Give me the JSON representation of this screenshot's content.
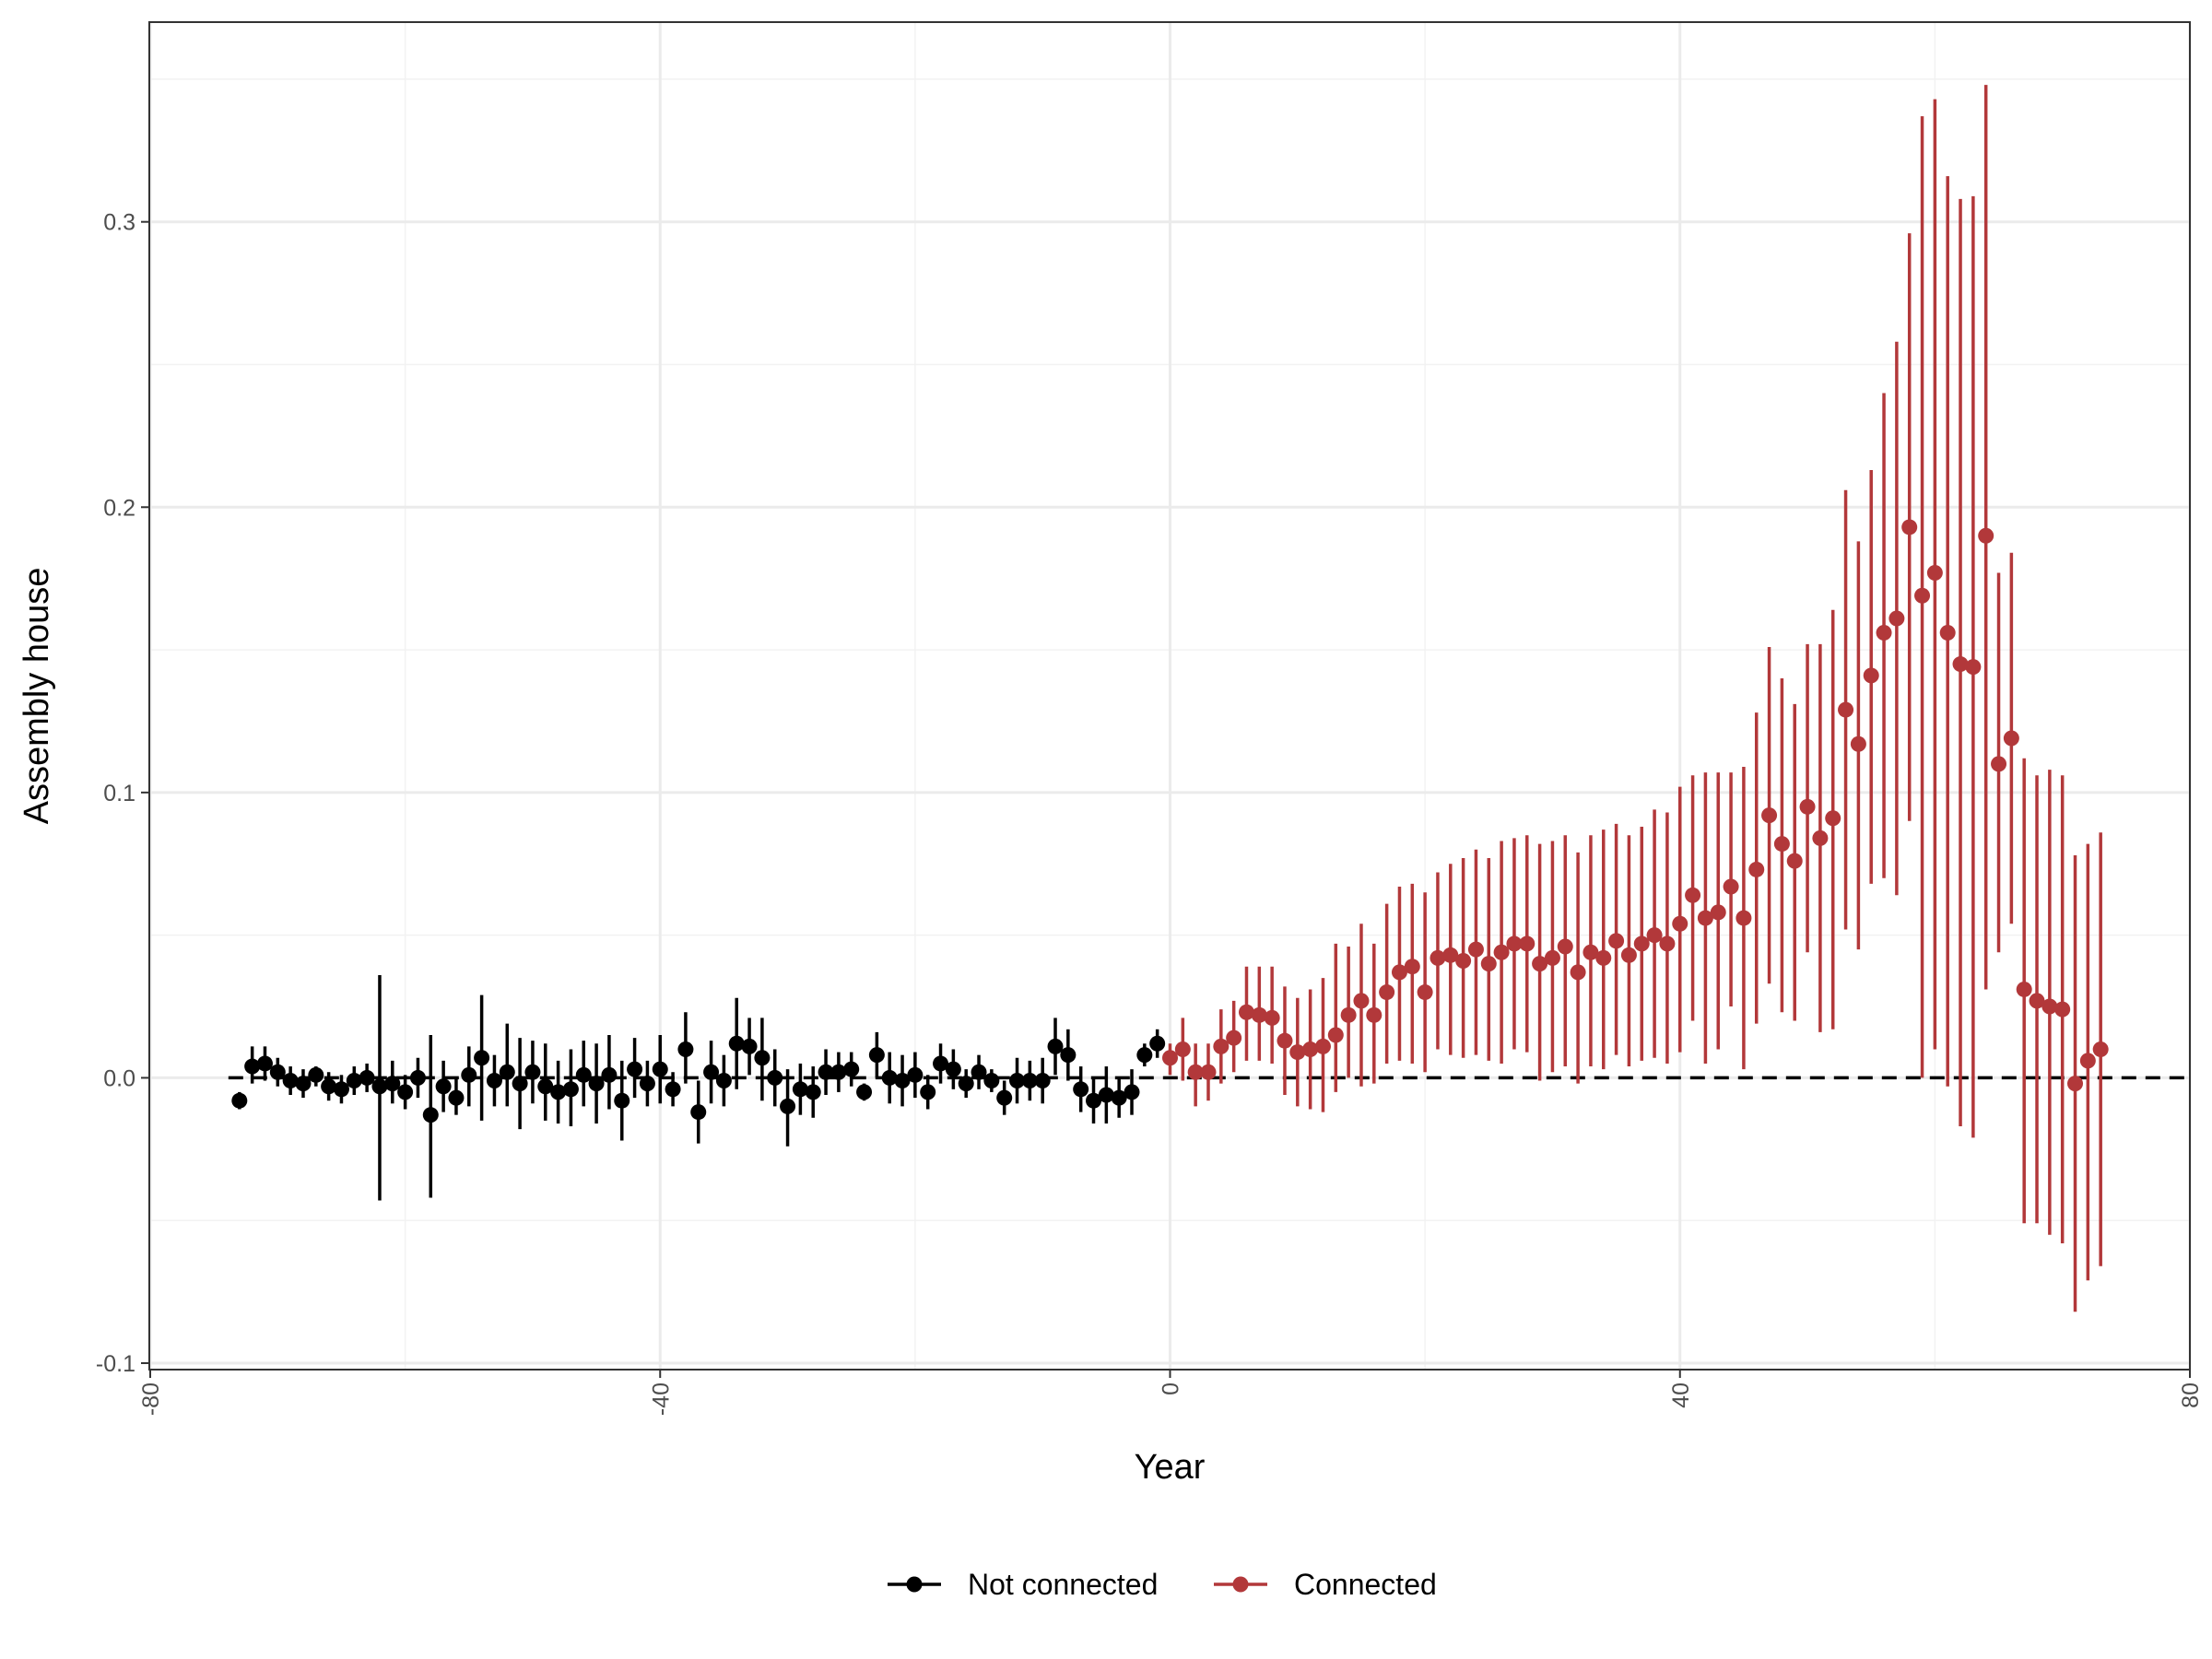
{
  "chart_data": {
    "type": "scatter",
    "title": "",
    "xlabel": "Year",
    "ylabel": "Assembly house",
    "xlim": [
      -80,
      80
    ],
    "ylim": [
      -0.1,
      0.37
    ],
    "x_ticks": [
      -80,
      -40,
      0,
      40,
      80
    ],
    "x_tick_labels": [
      "-80",
      "-40",
      "0",
      "40",
      "80"
    ],
    "y_ticks": [
      -0.1,
      0.0,
      0.1,
      0.2,
      0.3
    ],
    "y_tick_labels": [
      "-0.1",
      "0.0",
      "0.1",
      "0.2",
      "0.3"
    ],
    "reference_line": {
      "y": 0,
      "style": "dashed"
    },
    "grid": true,
    "legend_position": "bottom",
    "series": [
      {
        "name": "Not connected",
        "color": "#000000",
        "x": [
          -73,
          -72,
          -71,
          -70,
          -69,
          -68,
          -67,
          -66,
          -65,
          -64,
          -63,
          -62,
          -61,
          -60,
          -59,
          -58,
          -57,
          -56,
          -55,
          -54,
          -53,
          -52,
          -51,
          -50,
          -49,
          -48,
          -47,
          -46,
          -45,
          -44,
          -43,
          -42,
          -41,
          -40,
          -39,
          -38,
          -37,
          -36,
          -35,
          -34,
          -33,
          -32,
          -31,
          -30,
          -29,
          -28,
          -27,
          -26,
          -25,
          -24,
          -23,
          -22,
          -21,
          -20,
          -19,
          -18,
          -17,
          -16,
          -15,
          -14,
          -13,
          -12,
          -11,
          -10,
          -9,
          -8,
          -7,
          -6,
          -5,
          -4,
          -3,
          -2,
          -1
        ],
        "y": [
          -0.008,
          0.004,
          0.005,
          0.002,
          -0.001,
          -0.002,
          0.001,
          -0.003,
          -0.004,
          -0.001,
          0.0,
          -0.003,
          -0.002,
          -0.005,
          0.0,
          -0.013,
          -0.003,
          -0.007,
          0.001,
          0.007,
          -0.001,
          0.002,
          -0.002,
          0.002,
          -0.003,
          -0.005,
          -0.004,
          0.001,
          -0.002,
          0.001,
          -0.008,
          0.003,
          -0.002,
          0.003,
          -0.004,
          0.01,
          -0.012,
          0.002,
          -0.001,
          0.012,
          0.011,
          0.007,
          0.0,
          -0.01,
          -0.004,
          -0.005,
          0.002,
          0.002,
          0.003,
          -0.005,
          0.008,
          0.0,
          -0.001,
          0.001,
          -0.005,
          0.005,
          0.003,
          -0.002,
          0.002,
          -0.001,
          -0.007,
          -0.001,
          -0.001,
          -0.001,
          0.011,
          0.008,
          -0.004,
          -0.008,
          -0.006,
          -0.007,
          -0.005,
          0.008,
          0.012
        ],
        "lower": [
          -0.011,
          -0.002,
          -0.001,
          -0.003,
          -0.006,
          -0.007,
          -0.003,
          -0.008,
          -0.009,
          -0.006,
          -0.005,
          -0.043,
          -0.009,
          -0.011,
          -0.007,
          -0.042,
          -0.012,
          -0.013,
          -0.01,
          -0.015,
          -0.01,
          -0.01,
          -0.018,
          -0.009,
          -0.015,
          -0.016,
          -0.017,
          -0.01,
          -0.016,
          -0.011,
          -0.022,
          -0.007,
          -0.01,
          -0.009,
          -0.01,
          -0.002,
          -0.023,
          -0.009,
          -0.01,
          -0.004,
          0.001,
          -0.008,
          -0.01,
          -0.024,
          -0.013,
          -0.014,
          -0.006,
          -0.005,
          -0.003,
          -0.008,
          0.0,
          -0.009,
          -0.01,
          -0.007,
          -0.011,
          -0.002,
          -0.004,
          -0.007,
          -0.004,
          -0.005,
          -0.013,
          -0.009,
          -0.008,
          -0.009,
          0.001,
          -0.001,
          -0.012,
          -0.016,
          -0.016,
          -0.014,
          -0.013,
          0.004,
          0.007
        ],
        "upper": [
          -0.005,
          0.011,
          0.011,
          0.007,
          0.004,
          0.003,
          0.004,
          0.002,
          0.001,
          0.004,
          0.005,
          0.036,
          0.006,
          0.001,
          0.007,
          0.015,
          0.006,
          0.0,
          0.011,
          0.029,
          0.008,
          0.019,
          0.014,
          0.013,
          0.012,
          0.006,
          0.01,
          0.013,
          0.012,
          0.015,
          0.006,
          0.014,
          0.006,
          0.015,
          0.002,
          0.023,
          -0.001,
          0.013,
          0.008,
          0.028,
          0.021,
          0.021,
          0.01,
          0.003,
          0.005,
          0.004,
          0.01,
          0.009,
          0.009,
          -0.002,
          0.016,
          0.009,
          0.008,
          0.009,
          0.001,
          0.012,
          0.01,
          0.003,
          0.008,
          0.003,
          -0.001,
          0.007,
          0.006,
          0.007,
          0.021,
          0.017,
          0.004,
          0.0,
          0.004,
          0.0,
          0.003,
          0.012,
          0.017
        ]
      },
      {
        "name": "Connected",
        "color": "#b2383a",
        "x": [
          0,
          1,
          2,
          3,
          4,
          5,
          6,
          7,
          8,
          9,
          10,
          11,
          12,
          13,
          14,
          15,
          16,
          17,
          18,
          19,
          20,
          21,
          22,
          23,
          24,
          25,
          26,
          27,
          28,
          29,
          30,
          31,
          32,
          33,
          34,
          35,
          36,
          37,
          38,
          39,
          40,
          41,
          42,
          43,
          44,
          45,
          46,
          47,
          48,
          49,
          50,
          51,
          52,
          53,
          54,
          55,
          56,
          57,
          58,
          59,
          60,
          61,
          62,
          63,
          64,
          65,
          66,
          67,
          68,
          69,
          70,
          71,
          72,
          73
        ],
        "y": [
          0.007,
          0.01,
          0.002,
          0.002,
          0.011,
          0.014,
          0.023,
          0.022,
          0.021,
          0.013,
          0.009,
          0.01,
          0.011,
          0.015,
          0.022,
          0.027,
          0.022,
          0.03,
          0.037,
          0.039,
          0.03,
          0.042,
          0.043,
          0.041,
          0.045,
          0.04,
          0.044,
          0.047,
          0.047,
          0.04,
          0.042,
          0.046,
          0.037,
          0.044,
          0.042,
          0.048,
          0.043,
          0.047,
          0.05,
          0.047,
          0.054,
          0.064,
          0.056,
          0.058,
          0.067,
          0.056,
          0.073,
          0.092,
          0.082,
          0.076,
          0.095,
          0.084,
          0.091,
          0.129,
          0.117,
          0.141,
          0.156,
          0.161,
          0.193,
          0.169,
          0.177,
          0.156,
          0.145,
          0.144,
          0.19,
          0.11,
          0.119,
          0.031,
          0.027,
          0.025,
          0.024,
          -0.002,
          0.006,
          0.01
        ],
        "lower": [
          0.001,
          -0.001,
          -0.01,
          -0.008,
          -0.002,
          0.002,
          0.006,
          0.006,
          0.005,
          -0.006,
          -0.01,
          -0.011,
          -0.012,
          -0.005,
          0.0,
          -0.003,
          -0.002,
          0.005,
          0.006,
          0.005,
          0.002,
          0.01,
          0.008,
          0.007,
          0.008,
          0.006,
          0.005,
          0.01,
          0.009,
          -0.001,
          0.002,
          0.004,
          -0.002,
          0.004,
          0.003,
          0.008,
          0.004,
          0.006,
          0.007,
          0.005,
          0.009,
          0.02,
          0.005,
          0.01,
          0.025,
          0.003,
          0.019,
          0.033,
          0.023,
          0.02,
          0.044,
          0.016,
          0.017,
          0.052,
          0.045,
          0.068,
          0.07,
          0.064,
          0.09,
          0.0,
          0.01,
          -0.003,
          -0.017,
          -0.021,
          0.031,
          0.044,
          0.054,
          -0.051,
          -0.051,
          -0.055,
          -0.058,
          -0.082,
          -0.071,
          -0.066
        ],
        "upper": [
          0.012,
          0.021,
          0.012,
          0.012,
          0.024,
          0.027,
          0.039,
          0.039,
          0.039,
          0.032,
          0.028,
          0.031,
          0.035,
          0.047,
          0.046,
          0.054,
          0.047,
          0.061,
          0.067,
          0.068,
          0.065,
          0.072,
          0.075,
          0.077,
          0.08,
          0.077,
          0.083,
          0.084,
          0.085,
          0.082,
          0.083,
          0.085,
          0.079,
          0.085,
          0.087,
          0.089,
          0.085,
          0.088,
          0.094,
          0.093,
          0.102,
          0.106,
          0.107,
          0.107,
          0.107,
          0.109,
          0.128,
          0.151,
          0.14,
          0.131,
          0.152,
          0.152,
          0.164,
          0.206,
          0.188,
          0.213,
          0.24,
          0.258,
          0.296,
          0.337,
          0.343,
          0.316,
          0.308,
          0.309,
          0.348,
          0.177,
          0.184,
          0.112,
          0.106,
          0.108,
          0.106,
          0.078,
          0.082,
          0.086
        ]
      }
    ]
  }
}
